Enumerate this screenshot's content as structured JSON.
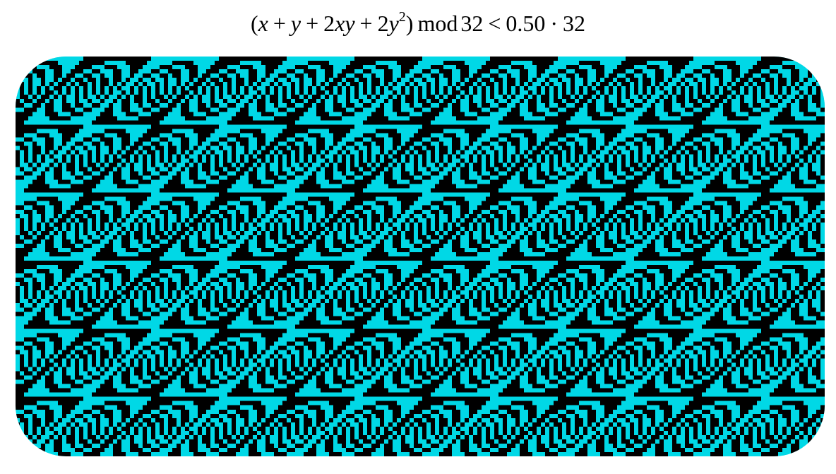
{
  "formula": {
    "open_paren": "(",
    "x1": "x",
    "plus1": "+",
    "y1": "y",
    "plus2": "+",
    "term3_coef": "2",
    "term3_x": "x",
    "term3_y": "y",
    "plus3": "+",
    "term4_coef": "2",
    "term4_y": "y",
    "term4_exp": "2",
    "close_paren": ")",
    "mod_word": "mod",
    "modulus": "32",
    "comparator": "<",
    "fraction": "0.50",
    "dot": "·",
    "modulus_repeat": "32"
  },
  "pattern": {
    "modulus": 32,
    "threshold_fraction": 0.5,
    "color_true": "#00d8e6",
    "color_false": "#000000"
  }
}
